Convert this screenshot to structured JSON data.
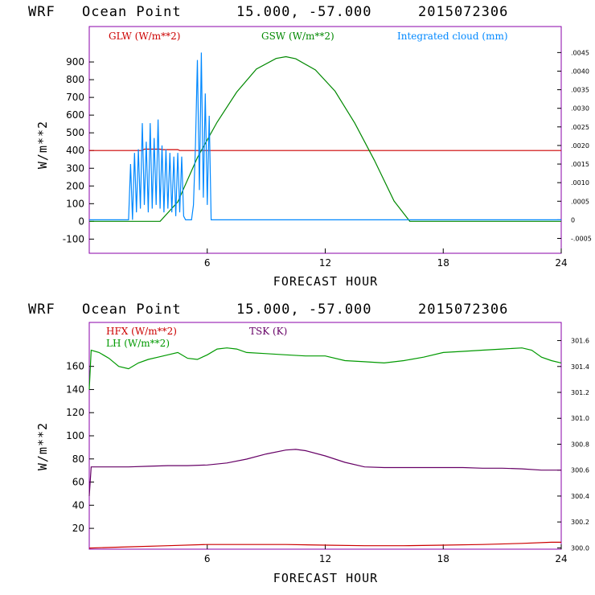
{
  "palette": {
    "glw": "#cc0000",
    "gsw": "#008800",
    "cloud": "#0088ff",
    "hfx": "#cc0000",
    "lh": "#009900",
    "tsk": "#660066",
    "frame": "#8800aa"
  },
  "chart_data": [
    {
      "type": "line",
      "header": {
        "model": "WRF",
        "location": "Ocean Point",
        "coords": "15.000, -57.000",
        "init": "2015072306"
      },
      "xlabel": "FORECAST HOUR",
      "ylabel": "W/m**2",
      "xlim": [
        0,
        24
      ],
      "ylim": [
        -180,
        1100
      ],
      "y2lim": [
        -0.0009,
        0.0052
      ],
      "xticks": [
        "6",
        "12",
        "18",
        "24"
      ],
      "yticks": [
        "-100",
        "0",
        "100",
        "200",
        "300",
        "400",
        "500",
        "600",
        "700",
        "800",
        "900"
      ],
      "y2ticks": [
        "-.0005",
        "0",
        ".0005",
        ".0010",
        ".0015",
        ".0020",
        ".0025",
        ".0030",
        ".0035",
        ".0040",
        ".0045"
      ],
      "y2tick_values": [
        -0.0005,
        0,
        0.0005,
        0.001,
        0.0015,
        0.002,
        0.0025,
        0.003,
        0.0035,
        0.004,
        0.0045
      ],
      "series": [
        {
          "name": "GLW (W/m**2)",
          "axis": "left",
          "x": [
            0,
            2.7,
            2.8,
            3.6,
            3.7,
            4.5,
            4.6,
            24
          ],
          "y": [
            400,
            400,
            408,
            408,
            405,
            405,
            400,
            400
          ]
        },
        {
          "name": "GSW (W/m**2)",
          "axis": "left",
          "x": [
            0,
            3.6,
            4.5,
            5.5,
            6.5,
            7.5,
            8.5,
            9.5,
            10,
            10.5,
            11.5,
            12.5,
            13.5,
            14.5,
            15.5,
            16.3,
            24
          ],
          "y": [
            0,
            0,
            110,
            360,
            560,
            730,
            860,
            920,
            930,
            918,
            855,
            735,
            555,
            345,
            115,
            0,
            0
          ]
        },
        {
          "name": "Integrated cloud (mm)",
          "axis": "right",
          "x": [
            0,
            2.0,
            2.1,
            2.2,
            2.3,
            2.4,
            2.5,
            2.6,
            2.7,
            2.8,
            2.9,
            3.0,
            3.1,
            3.2,
            3.3,
            3.4,
            3.5,
            3.6,
            3.7,
            3.8,
            3.9,
            4.0,
            4.1,
            4.2,
            4.3,
            4.4,
            4.5,
            4.6,
            4.7,
            4.8,
            4.9,
            5.0,
            5.1,
            5.2,
            5.3,
            5.4,
            5.5,
            5.6,
            5.7,
            5.8,
            5.9,
            6.0,
            6.1,
            6.2,
            6.3,
            24
          ],
          "y": [
            0,
            0,
            0.0015,
            0,
            0.0018,
            0.0002,
            0.0019,
            0.0003,
            0.0026,
            0.0004,
            0.0021,
            0.0002,
            0.0026,
            0.0003,
            0.0022,
            0.0004,
            0.0027,
            0.0003,
            0.002,
            0.0002,
            0.0019,
            0.0003,
            0.0018,
            0.0002,
            0.0017,
            0.0001,
            0.0018,
            0.0002,
            0.0017,
            0.0001,
            0.0,
            0.0,
            0.0,
            0.0,
            0.0004,
            0.002,
            0.0043,
            0.0008,
            0.0045,
            0.0006,
            0.0034,
            0.0004,
            0.0028,
            0.0,
            0.0,
            0.0
          ]
        }
      ]
    },
    {
      "type": "line",
      "header": {
        "model": "WRF",
        "location": "Ocean Point",
        "coords": "15.000, -57.000",
        "init": "2015072306"
      },
      "xlabel": "FORECAST HOUR",
      "ylabel": "W/m**2",
      "xlim": [
        0,
        24
      ],
      "ylim": [
        2,
        198
      ],
      "y2lim": [
        299.99,
        301.74
      ],
      "xticks": [
        "6",
        "12",
        "18",
        "24"
      ],
      "yticks": [
        "20",
        "40",
        "60",
        "80",
        "100",
        "120",
        "140",
        "160"
      ],
      "y2ticks": [
        "300.0",
        "300.2",
        "300.4",
        "300.6",
        "300.8",
        "301.0",
        "301.2",
        "301.4",
        "301.6"
      ],
      "y2tick_values": [
        300.0,
        300.2,
        300.4,
        300.6,
        300.8,
        301.0,
        301.2,
        301.4,
        301.6
      ],
      "series": [
        {
          "name": "HFX (W/m**2)",
          "axis": "left",
          "x": [
            0,
            2,
            4,
            6,
            8,
            10,
            12,
            14,
            16,
            18,
            20,
            22,
            23.5,
            24
          ],
          "y": [
            3,
            4,
            5,
            6,
            6,
            6,
            5.5,
            5,
            5,
            5.5,
            6,
            7,
            8,
            8
          ]
        },
        {
          "name": "LH (W/m**2)",
          "axis": "left",
          "x": [
            0,
            0.1,
            0.5,
            1,
            1.5,
            2,
            2.5,
            3,
            3.5,
            4,
            4.5,
            5,
            5.5,
            6,
            6.5,
            7,
            7.5,
            8,
            9,
            10,
            11,
            12,
            13,
            14,
            15,
            16,
            17,
            18,
            19,
            20,
            21,
            22,
            22.5,
            23,
            23.5,
            24
          ],
          "y": [
            140,
            174,
            172,
            167,
            160,
            158,
            163,
            166,
            168,
            170,
            172,
            167,
            166,
            170,
            175,
            176,
            175,
            172,
            171,
            170,
            169,
            169,
            165,
            164,
            163,
            165,
            168,
            172,
            173,
            174,
            175,
            176,
            174,
            168,
            165,
            163
          ]
        },
        {
          "name": "TSK (K)",
          "axis": "right",
          "x": [
            0,
            0.1,
            1,
            2,
            3,
            4,
            5,
            6,
            7,
            8,
            9,
            10,
            10.5,
            11,
            12,
            13,
            14,
            15,
            16,
            17,
            18,
            19,
            20,
            21,
            22,
            23,
            24
          ],
          "y": [
            300.4,
            300.625,
            300.625,
            300.625,
            300.63,
            300.635,
            300.635,
            300.64,
            300.655,
            300.685,
            300.725,
            300.755,
            300.76,
            300.75,
            300.71,
            300.66,
            300.625,
            300.62,
            300.62,
            300.62,
            300.62,
            300.62,
            300.615,
            300.615,
            300.61,
            300.6,
            300.6
          ]
        }
      ]
    }
  ]
}
